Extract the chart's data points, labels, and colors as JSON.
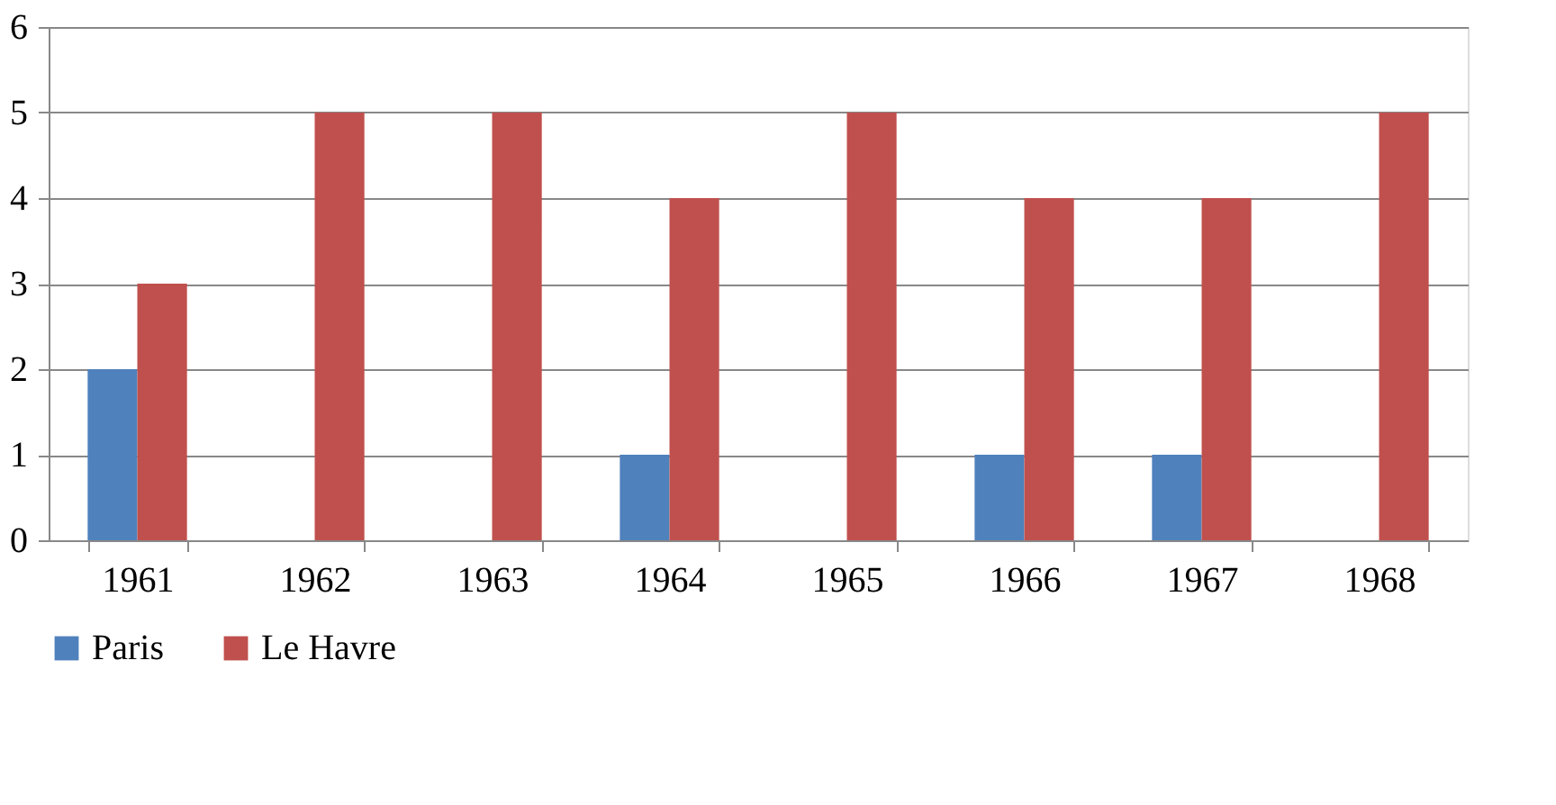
{
  "chart_data": {
    "type": "bar",
    "categories": [
      "1961",
      "1962",
      "1963",
      "1964",
      "1965",
      "1966",
      "1967",
      "1968"
    ],
    "series": [
      {
        "name": "Paris",
        "color": "#4f81bd",
        "values": [
          2,
          0,
          0,
          1,
          0,
          1,
          1,
          0
        ]
      },
      {
        "name": "Le Havre",
        "color": "#c0504d",
        "values": [
          3,
          5,
          5,
          4,
          5,
          4,
          4,
          5
        ]
      }
    ],
    "ylim": [
      0,
      6
    ],
    "yticks": [
      0,
      1,
      2,
      3,
      4,
      5,
      6
    ],
    "grid": "y",
    "legend": "bottom"
  }
}
